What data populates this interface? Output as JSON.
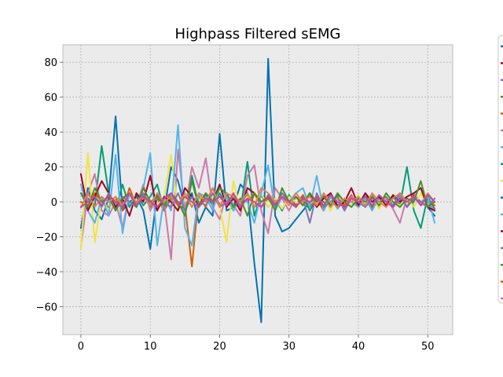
{
  "chart_data": {
    "type": "line",
    "title": "Highpass Filtered sEMG",
    "xlabel": "",
    "ylabel": "",
    "xlim": [
      -2.6,
      53.6
    ],
    "ylim": [
      -76,
      90
    ],
    "x_ticks": [
      0,
      10,
      20,
      30,
      40,
      50
    ],
    "y_ticks": [
      -60,
      -40,
      -20,
      0,
      20,
      40,
      60,
      80
    ],
    "grid": true,
    "legend": "right, outside plot area, partially cut off (no readable labels)",
    "background_color": "#ebebeb",
    "x": [
      0,
      1,
      2,
      3,
      4,
      5,
      6,
      7,
      8,
      9,
      10,
      11,
      12,
      13,
      14,
      15,
      16,
      17,
      18,
      19,
      20,
      21,
      22,
      23,
      24,
      25,
      26,
      27,
      28,
      29,
      30,
      31,
      32,
      33,
      34,
      35,
      36,
      37,
      38,
      39,
      40,
      41,
      42,
      43,
      44,
      45,
      46,
      47,
      48,
      49,
      50,
      51
    ],
    "series": [
      {
        "color": "#0072b2",
        "values": [
          -15,
          8,
          -5,
          -10,
          2,
          49,
          -5,
          0,
          3,
          -5,
          -27,
          5,
          -5,
          20,
          12,
          -3,
          5,
          -12,
          -3,
          -8,
          39,
          -5,
          -3,
          10,
          5,
          -35,
          -69,
          82,
          -8,
          -17,
          -15,
          -10,
          -5,
          0,
          2,
          -3,
          5,
          -2,
          0,
          3,
          -3,
          2,
          -4,
          3,
          0,
          -2,
          5,
          -3,
          4,
          0,
          -3,
          -8
        ]
      },
      {
        "color": "#009e73",
        "values": [
          -3,
          2,
          -2,
          32,
          5,
          -5,
          10,
          -3,
          4,
          -2,
          3,
          10,
          -5,
          2,
          0,
          -5,
          15,
          -3,
          4,
          -2,
          5,
          -3,
          2,
          -5,
          23,
          -8,
          4,
          -3,
          2,
          -5,
          4,
          -2,
          3,
          -5,
          2,
          0,
          -3,
          4,
          -2,
          3,
          -2,
          5,
          -3,
          2,
          0,
          3,
          -2,
          20,
          -5,
          -15,
          3,
          -4
        ]
      },
      {
        "color": "#d55e00",
        "values": [
          0,
          -2,
          5,
          0,
          -3,
          2,
          -5,
          8,
          -2,
          4,
          -3,
          2,
          -5,
          3,
          0,
          -2,
          -37,
          4,
          -3,
          8,
          -2,
          3,
          -5,
          2,
          0,
          5,
          -3,
          2,
          -4,
          3,
          0,
          -2,
          4,
          -3,
          2,
          -5,
          3,
          0,
          -2,
          4,
          -3,
          2,
          -4,
          3,
          0,
          -2,
          3,
          -3,
          5,
          -2,
          0,
          -2
        ]
      },
      {
        "color": "#cc79a7",
        "values": [
          -26,
          5,
          16,
          -5,
          -8,
          0,
          -15,
          5,
          -2,
          10,
          -5,
          3,
          0,
          -33,
          30,
          -5,
          20,
          8,
          25,
          -3,
          -10,
          5,
          -2,
          -8,
          15,
          21,
          -5,
          -18,
          8,
          2,
          -5,
          3,
          0,
          5,
          -2,
          4,
          -3,
          2,
          -4,
          3,
          0,
          -2,
          4,
          -3,
          2,
          -4,
          -12,
          3,
          5,
          -2,
          0,
          -5
        ]
      },
      {
        "color": "#f0e442",
        "values": [
          -27,
          28,
          -23,
          2,
          -5,
          3,
          -2,
          4,
          -3,
          5,
          0,
          -2,
          3,
          27,
          -5,
          2,
          -3,
          5,
          -2,
          4,
          -3,
          -23,
          12,
          -5,
          3,
          0,
          5,
          -3,
          2,
          -4,
          3,
          0,
          -2,
          4,
          -3,
          2,
          -5,
          3,
          0,
          -2,
          4,
          -3,
          2,
          -4,
          3,
          0,
          -2,
          3,
          -3,
          5,
          -2,
          0
        ]
      },
      {
        "color": "#56b4e9",
        "values": [
          10,
          -5,
          -12,
          3,
          -8,
          27,
          -18,
          5,
          -3,
          8,
          28,
          -25,
          3,
          -5,
          44,
          -15,
          -25,
          5,
          3,
          -5,
          8,
          3,
          -5,
          2,
          0,
          -12,
          5,
          21,
          -5,
          3,
          0,
          5,
          8,
          -3,
          15,
          -5,
          3,
          -4,
          2,
          0,
          -3,
          2,
          -5,
          3,
          0,
          -2,
          4,
          -3,
          2,
          0,
          3,
          -12
        ]
      },
      {
        "color": "#a30024",
        "values": [
          16,
          -5,
          3,
          12,
          5,
          -3,
          2,
          -8,
          5,
          0,
          15,
          -5,
          3,
          0,
          -5,
          8,
          3,
          -2,
          5,
          0,
          10,
          -3,
          2,
          -5,
          8,
          5,
          0,
          3,
          -2,
          5,
          0,
          3,
          -2,
          5,
          -3,
          2,
          5,
          -3,
          0,
          8,
          -2,
          5,
          0,
          3,
          -2,
          4,
          0,
          3,
          5,
          8,
          -3,
          -5
        ]
      },
      {
        "color": "#8172b2",
        "values": [
          5,
          0,
          3,
          -3,
          5,
          -5,
          3,
          0,
          -3,
          5,
          -2,
          3,
          0,
          -3,
          5,
          -5,
          3,
          0,
          -2,
          5,
          -3,
          0,
          3,
          -2,
          5,
          -3,
          0,
          3,
          -2,
          5,
          0,
          -3,
          2,
          -12,
          5,
          -3,
          0,
          3,
          -5,
          2,
          0,
          -3,
          2,
          0,
          3,
          -2,
          5,
          -3,
          2,
          0,
          -3,
          2
        ]
      },
      {
        "color": "#4c8c2b",
        "values": [
          5,
          -3,
          8,
          0,
          3,
          -5,
          2,
          5,
          -3,
          8,
          0,
          3,
          -2,
          5,
          0,
          -8,
          12,
          -3,
          5,
          0,
          8,
          5,
          -3,
          2,
          -8,
          5,
          0,
          3,
          -5,
          8,
          0,
          3,
          -2,
          5,
          0,
          3,
          -2,
          5,
          0,
          -3,
          2,
          0,
          3,
          -2,
          5,
          0,
          -3,
          2,
          0,
          12,
          -3,
          0
        ]
      },
      {
        "color": "#dd8452",
        "values": [
          -3,
          5,
          -3,
          3,
          0,
          3,
          -2,
          5,
          0,
          3,
          -2,
          5,
          0,
          3,
          -2,
          5,
          -3,
          5,
          0,
          8,
          -3,
          5,
          3,
          0,
          5,
          -3,
          8,
          5,
          0,
          3,
          -2,
          5,
          0,
          3,
          -2,
          5,
          0,
          -3,
          2,
          0,
          3,
          -2,
          5,
          0,
          -3,
          2,
          5,
          0,
          3,
          -2,
          5,
          0
        ]
      },
      {
        "color": "#c6469f",
        "values": [
          -3,
          0,
          3,
          -2,
          4,
          0,
          -3,
          5,
          -2,
          3,
          0,
          -3,
          2,
          5,
          -2,
          3,
          0,
          -3,
          2,
          0,
          3,
          -2,
          5,
          -3,
          2,
          0,
          -3,
          4,
          -2,
          3,
          0,
          -3,
          2,
          0,
          3,
          -2,
          4,
          0,
          -3,
          2,
          0,
          3,
          -2,
          4,
          0,
          -3,
          2,
          0,
          3,
          -2,
          4,
          0
        ]
      }
    ]
  }
}
